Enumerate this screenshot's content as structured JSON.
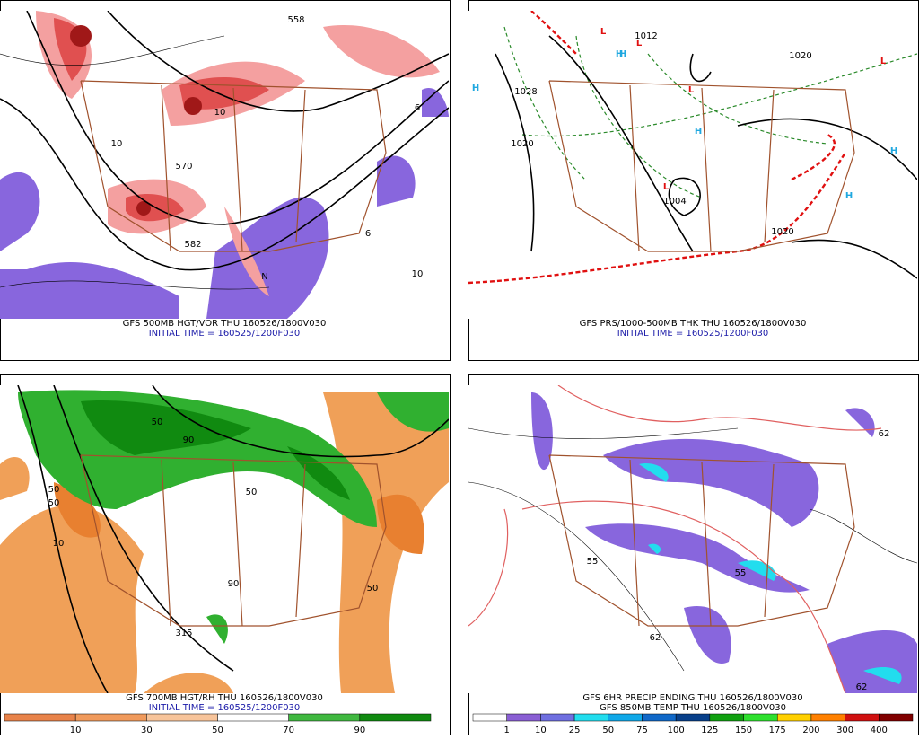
{
  "panels": [
    {
      "title": "GFS 500MB HGT/VOR THU 160526/1800V030",
      "subtitle": "INITIAL TIME = 160525/1200F030",
      "map_labels": [
        "558",
        "570",
        "582",
        "10",
        "6",
        "10",
        "6",
        "N",
        "10"
      ]
    },
    {
      "title": "GFS PRS/1000-500MB THK THU 160526/1800V030",
      "subtitle": "INITIAL TIME = 160525/1200F030",
      "lows": [
        "L",
        "L",
        "L",
        "L",
        "L"
      ],
      "highs": [
        "H",
        "H",
        "H",
        "H",
        "H",
        "H"
      ],
      "map_labels": [
        "1012",
        "1020",
        "1028",
        "1020",
        "1004",
        "1020"
      ]
    },
    {
      "title": "GFS 700MB HGT/RH THU 160526/1800V030",
      "subtitle": "INITIAL TIME = 160525/1200F030",
      "map_labels": [
        "50",
        "90",
        "50",
        "10",
        "50",
        "50",
        "90",
        "315",
        "50"
      ],
      "colorbar": [
        "10",
        "30",
        "50",
        "70",
        "90"
      ]
    },
    {
      "title": "GFS 6HR PRECIP ENDING THU 160526/1800V030",
      "subtitle": "GFS 850MB TEMP THU 160526/1800V030",
      "map_labels": [
        "62",
        "55",
        "62",
        "55",
        "62"
      ],
      "colorbar": [
        "1",
        "10",
        "25",
        "50",
        "75",
        "100",
        "125",
        "150",
        "175",
        "200",
        "300",
        "400"
      ]
    }
  ]
}
